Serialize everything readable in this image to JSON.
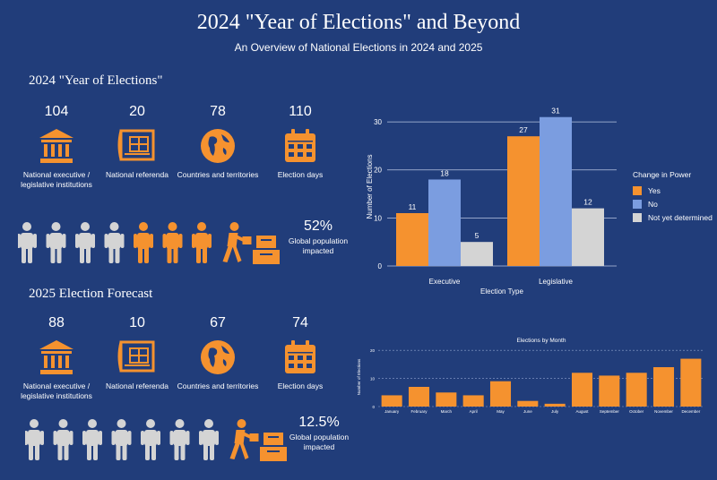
{
  "header": {
    "title": "2024 \"Year of Elections\" and Beyond",
    "subtitle": "An Overview of National Elections in 2024 and 2025"
  },
  "sections": [
    {
      "title": "2024 \"Year of Elections\"",
      "stats": [
        {
          "value": "104",
          "label": "National executive / legislative institutions",
          "icon": "institution-icon"
        },
        {
          "value": "20",
          "label": "National referenda",
          "icon": "blueprint-icon"
        },
        {
          "value": "78",
          "label": "Countries and territories",
          "icon": "globe-icon"
        },
        {
          "value": "110",
          "label": "Election days",
          "icon": "calendar-icon"
        }
      ],
      "population": {
        "percent": "52%",
        "label": "Global population impacted",
        "orange_figures": 4,
        "total_figures": 8
      }
    },
    {
      "title": "2025 Election Forecast",
      "stats": [
        {
          "value": "88",
          "label": "National executive / legislative institutions",
          "icon": "institution-icon"
        },
        {
          "value": "10",
          "label": "National referenda",
          "icon": "blueprint-icon"
        },
        {
          "value": "67",
          "label": "Countries and territories",
          "icon": "globe-icon"
        },
        {
          "value": "74",
          "label": "Election days",
          "icon": "calendar-icon"
        }
      ],
      "population": {
        "percent": "12.5%",
        "label": "Global population impacted",
        "orange_figures": 1,
        "total_figures": 8
      }
    }
  ],
  "colors": {
    "background": "#213d7a",
    "orange": "#f5922f",
    "blue": "#7b9de0",
    "gray": "#d4d4d4"
  },
  "chart_data": [
    {
      "type": "bar",
      "xlabel": "Election Type",
      "ylabel": "Number of Elections",
      "categories": [
        "Executive",
        "Legislative"
      ],
      "series": [
        {
          "name": "Yes",
          "values": [
            11,
            27
          ],
          "color": "#f5922f"
        },
        {
          "name": "No",
          "values": [
            18,
            31
          ],
          "color": "#7b9de0"
        },
        {
          "name": "Not yet determined",
          "values": [
            5,
            12
          ],
          "color": "#d4d4d4"
        }
      ],
      "legend_title": "Change in Power",
      "legend_placement": "right",
      "ylim": [
        0,
        33
      ],
      "yticks": [
        0,
        10,
        20,
        30
      ],
      "grid": true
    },
    {
      "type": "bar",
      "title": "Elections by Month",
      "ylabel": "Number of Elections",
      "categories": [
        "January",
        "February",
        "March",
        "April",
        "May",
        "June",
        "July",
        "August",
        "September",
        "October",
        "November",
        "December"
      ],
      "values": [
        4,
        7,
        5,
        4,
        9,
        2,
        1,
        12,
        11,
        12,
        14,
        17
      ],
      "ylim": [
        0,
        21
      ],
      "yticks": [
        0,
        10,
        20
      ],
      "grid": true
    }
  ]
}
